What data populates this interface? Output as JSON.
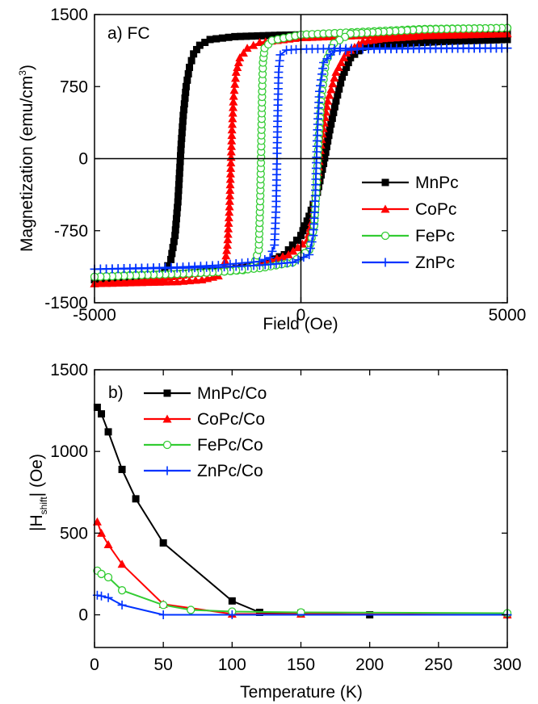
{
  "chart_data": [
    {
      "type": "line",
      "panel_label": "a) FC",
      "xlabel": "Field (Oe)",
      "ylabel": "Magnetization (emu/cm",
      "ylabel_sup": "3",
      "ylabel_tail": ")",
      "xlim": [
        -5000,
        5000
      ],
      "ylim": [
        -1500,
        1500
      ],
      "xticks": [
        "-5000",
        "0",
        "5000"
      ],
      "yticks": [
        "1500",
        "750",
        "0",
        "-750",
        "-1500"
      ],
      "xtick_values": [
        -5000,
        0,
        5000
      ],
      "ytick_values": [
        1500,
        750,
        0,
        -750,
        -1500
      ],
      "legend_position": "bottom-right",
      "series": [
        {
          "name": "MnPc",
          "color": "#000000",
          "marker": "square",
          "points": [
            [
              -5000,
              -1260
            ],
            [
              -4000,
              -1250
            ],
            [
              -3600,
              -1230
            ],
            [
              -3300,
              -1180
            ],
            [
              -3150,
              -1050
            ],
            [
              -3050,
              -800
            ],
            [
              -2980,
              -450
            ],
            [
              -2940,
              -150
            ],
            [
              -2900,
              150
            ],
            [
              -2850,
              450
            ],
            [
              -2780,
              750
            ],
            [
              -2700,
              950
            ],
            [
              -2600,
              1090
            ],
            [
              -2450,
              1180
            ],
            [
              -2200,
              1240
            ],
            [
              -1600,
              1270
            ],
            [
              -500,
              1285
            ],
            [
              1000,
              1295
            ],
            [
              3000,
              1300
            ],
            [
              5000,
              1305
            ],
            [
              5000,
              1240
            ],
            [
              3500,
              1220
            ],
            [
              2000,
              1190
            ],
            [
              1500,
              1160
            ],
            [
              1200,
              1050
            ],
            [
              1000,
              850
            ],
            [
              850,
              600
            ],
            [
              700,
              300
            ],
            [
              550,
              -50
            ],
            [
              400,
              -350
            ],
            [
              200,
              -600
            ],
            [
              0,
              -800
            ],
            [
              -400,
              -1000
            ],
            [
              -1000,
              -1110
            ],
            [
              -2000,
              -1170
            ],
            [
              -3000,
              -1200
            ],
            [
              -4000,
              -1230
            ],
            [
              -5000,
              -1260
            ]
          ]
        },
        {
          "name": "CoPc",
          "color": "#ff0000",
          "marker": "triangle",
          "points": [
            [
              -5000,
              -1300
            ],
            [
              -4000,
              -1290
            ],
            [
              -3000,
              -1280
            ],
            [
              -2400,
              -1260
            ],
            [
              -2000,
              -1220
            ],
            [
              -1850,
              -1120
            ],
            [
              -1780,
              -900
            ],
            [
              -1730,
              -500
            ],
            [
              -1700,
              -100
            ],
            [
              -1670,
              300
            ],
            [
              -1630,
              650
            ],
            [
              -1570,
              900
            ],
            [
              -1480,
              1050
            ],
            [
              -1300,
              1150
            ],
            [
              -1000,
              1210
            ],
            [
              0,
              1260
            ],
            [
              2000,
              1290
            ],
            [
              4000,
              1300
            ],
            [
              5000,
              1305
            ],
            [
              5000,
              1300
            ],
            [
              3000,
              1280
            ],
            [
              2000,
              1250
            ],
            [
              1500,
              1220
            ],
            [
              1100,
              1100
            ],
            [
              850,
              900
            ],
            [
              650,
              600
            ],
            [
              500,
              200
            ],
            [
              400,
              -200
            ],
            [
              300,
              -600
            ],
            [
              150,
              -850
            ],
            [
              -300,
              -1000
            ],
            [
              -1000,
              -1100
            ],
            [
              -2000,
              -1160
            ],
            [
              -3000,
              -1220
            ],
            [
              -4000,
              -1270
            ],
            [
              -5000,
              -1300
            ]
          ]
        },
        {
          "name": "FePc",
          "color": "#33cc33",
          "marker": "circle",
          "points": [
            [
              -5000,
              -1230
            ],
            [
              -4000,
              -1210
            ],
            [
              -3000,
              -1200
            ],
            [
              -2000,
              -1180
            ],
            [
              -1400,
              -1160
            ],
            [
              -1150,
              -1120
            ],
            [
              -1020,
              -950
            ],
            [
              -990,
              -500
            ],
            [
              -970,
              -100
            ],
            [
              -955,
              300
            ],
            [
              -940,
              700
            ],
            [
              -920,
              1000
            ],
            [
              -880,
              1150
            ],
            [
              -700,
              1230
            ],
            [
              0,
              1290
            ],
            [
              1500,
              1320
            ],
            [
              3000,
              1350
            ],
            [
              5000,
              1360
            ],
            [
              5000,
              1360
            ],
            [
              3000,
              1345
            ],
            [
              2000,
              1320
            ],
            [
              1200,
              1300
            ],
            [
              800,
              1200
            ],
            [
              600,
              1000
            ],
            [
              500,
              650
            ],
            [
              430,
              200
            ],
            [
              380,
              -300
            ],
            [
              320,
              -700
            ],
            [
              200,
              -950
            ],
            [
              -200,
              -1080
            ],
            [
              -1000,
              -1140
            ],
            [
              -2000,
              -1180
            ],
            [
              -3000,
              -1200
            ],
            [
              -4000,
              -1215
            ],
            [
              -5000,
              -1230
            ]
          ]
        },
        {
          "name": "ZnPc",
          "color": "#0033ff",
          "marker": "plus",
          "points": [
            [
              -5000,
              -1150
            ],
            [
              -4000,
              -1140
            ],
            [
              -3000,
              -1130
            ],
            [
              -2000,
              -1110
            ],
            [
              -1000,
              -1070
            ],
            [
              -750,
              -1030
            ],
            [
              -640,
              -900
            ],
            [
              -600,
              -500
            ],
            [
              -580,
              0
            ],
            [
              -560,
              500
            ],
            [
              -540,
              900
            ],
            [
              -500,
              1080
            ],
            [
              -350,
              1130
            ],
            [
              0,
              1140
            ],
            [
              1500,
              1150
            ],
            [
              3000,
              1150
            ],
            [
              5000,
              1150
            ],
            [
              5000,
              1150
            ],
            [
              3000,
              1145
            ],
            [
              1500,
              1140
            ],
            [
              800,
              1120
            ],
            [
              550,
              1000
            ],
            [
              450,
              700
            ],
            [
              400,
              300
            ],
            [
              370,
              -100
            ],
            [
              340,
              -500
            ],
            [
              300,
              -800
            ],
            [
              200,
              -1000
            ],
            [
              -200,
              -1080
            ],
            [
              -1000,
              -1110
            ],
            [
              -2000,
              -1130
            ],
            [
              -3000,
              -1140
            ],
            [
              -4000,
              -1145
            ],
            [
              -5000,
              -1150
            ]
          ]
        }
      ]
    },
    {
      "type": "line",
      "panel_label": "b)",
      "xlabel": "Temperature (K)",
      "ylabel": "|H",
      "ylabel_sub": "shift",
      "ylabel_tail": "| (Oe)",
      "xlim": [
        0,
        300
      ],
      "ylim": [
        -200,
        1500
      ],
      "xticks": [
        "0",
        "50",
        "100",
        "150",
        "200",
        "250",
        "300"
      ],
      "yticks": [
        "1500",
        "1000",
        "500",
        "0"
      ],
      "xtick_values": [
        0,
        50,
        100,
        150,
        200,
        250,
        300
      ],
      "ytick_values": [
        1500,
        1000,
        500,
        0
      ],
      "legend_position": "top-right",
      "series": [
        {
          "name": "MnPc/Co",
          "color": "#000000",
          "marker": "square",
          "points": [
            [
              2,
              1270
            ],
            [
              5,
              1230
            ],
            [
              10,
              1120
            ],
            [
              20,
              890
            ],
            [
              30,
              710
            ],
            [
              50,
              440
            ],
            [
              100,
              85
            ],
            [
              120,
              15
            ],
            [
              150,
              10
            ],
            [
              200,
              0
            ],
            [
              300,
              0
            ]
          ]
        },
        {
          "name": "CoPc/Co",
          "color": "#ff0000",
          "marker": "triangle",
          "points": [
            [
              2,
              570
            ],
            [
              5,
              500
            ],
            [
              10,
              430
            ],
            [
              20,
              310
            ],
            [
              50,
              65
            ],
            [
              100,
              5
            ],
            [
              150,
              5
            ],
            [
              300,
              0
            ]
          ]
        },
        {
          "name": "FePc/Co",
          "color": "#33cc33",
          "marker": "circle",
          "points": [
            [
              2,
              270
            ],
            [
              5,
              250
            ],
            [
              10,
              230
            ],
            [
              20,
              150
            ],
            [
              50,
              60
            ],
            [
              70,
              30
            ],
            [
              100,
              20
            ],
            [
              150,
              15
            ],
            [
              300,
              10
            ]
          ]
        },
        {
          "name": "ZnPc/Co",
          "color": "#0033ff",
          "marker": "plus",
          "points": [
            [
              2,
              120
            ],
            [
              5,
              115
            ],
            [
              10,
              105
            ],
            [
              20,
              60
            ],
            [
              50,
              0
            ],
            [
              100,
              0
            ],
            [
              300,
              0
            ]
          ]
        }
      ]
    }
  ]
}
